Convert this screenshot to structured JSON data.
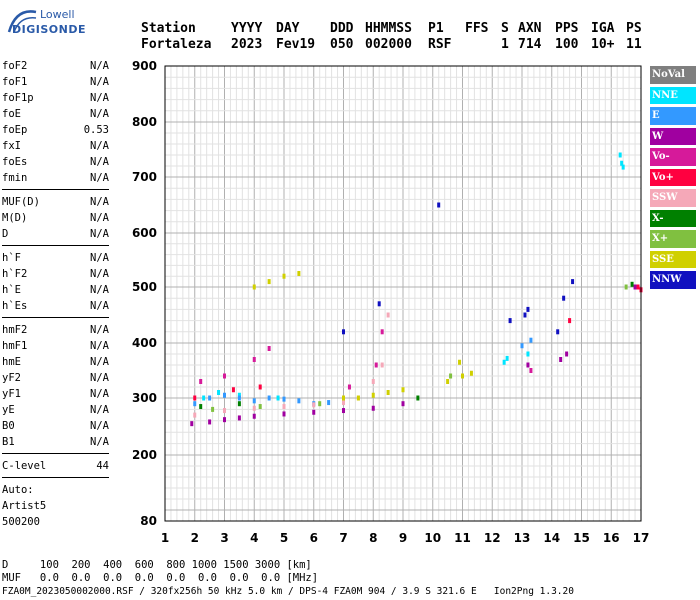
{
  "logo": {
    "top": "Lowell",
    "bottom": "DIGISONDE"
  },
  "header": {
    "labels": [
      "Station",
      "YYYY",
      "DAY",
      "DDD",
      "HHMMSS",
      "P1",
      "FFS",
      "S",
      "AXN",
      "PPS",
      "IGA",
      "PS"
    ],
    "values": [
      "Fortaleza",
      "2023",
      "Fev19",
      "050",
      "002000",
      "RSF",
      "1",
      "714",
      "100",
      "10+",
      "11"
    ]
  },
  "params": {
    "group1": [
      [
        "foF2",
        "N/A"
      ],
      [
        "foF1",
        "N/A"
      ],
      [
        "foF1p",
        "N/A"
      ],
      [
        "foE",
        "N/A"
      ],
      [
        "foEp",
        "0.53"
      ],
      [
        "fxI",
        "N/A"
      ],
      [
        "foEs",
        "N/A"
      ],
      [
        "fmin",
        "N/A"
      ]
    ],
    "group2": [
      [
        "MUF(D)",
        "N/A"
      ],
      [
        "M(D)",
        "N/A"
      ],
      [
        "D",
        "N/A"
      ]
    ],
    "group3": [
      [
        "h`F",
        "N/A"
      ],
      [
        "h`F2",
        "N/A"
      ],
      [
        "h`E",
        "N/A"
      ],
      [
        "h`Es",
        "N/A"
      ]
    ],
    "group4": [
      [
        "hmF2",
        "N/A"
      ],
      [
        "hmF1",
        "N/A"
      ],
      [
        "hmE",
        "N/A"
      ],
      [
        "yF2",
        "N/A"
      ],
      [
        "yF1",
        "N/A"
      ],
      [
        "yE",
        "N/A"
      ],
      [
        "B0",
        "N/A"
      ],
      [
        "B1",
        "N/A"
      ]
    ],
    "group5": [
      [
        "C-level",
        "44"
      ]
    ]
  },
  "auto": [
    "Auto:",
    "Artist5",
    "500200"
  ],
  "legend": [
    {
      "label": "NoVal",
      "color": "#7f7f7f"
    },
    {
      "label": "NNE",
      "color": "#00e5ff"
    },
    {
      "label": "E",
      "color": "#3399ff"
    },
    {
      "label": "W",
      "color": "#a000a0"
    },
    {
      "label": "Vo-",
      "color": "#d61a9a"
    },
    {
      "label": "Vo+",
      "color": "#ff0040"
    },
    {
      "label": "SSW",
      "color": "#f5a8b8"
    },
    {
      "label": "X-",
      "color": "#008000"
    },
    {
      "label": "X+",
      "color": "#80c040"
    },
    {
      "label": "SSE",
      "color": "#d0d000"
    },
    {
      "label": "NNW",
      "color": "#1010c0"
    }
  ],
  "bottom": {
    "d_row": "D     100  200  400  600  800 1000 1500 3000 [km]",
    "muf_row": "MUF   0.0  0.0  0.0  0.0  0.0  0.0  0.0  0.0 [MHz]",
    "file_row": "FZA0M_2023050002000.RSF / 320fx256h 50 kHz 5.0 km / DPS-4 FZA0M 904 / 3.9 S 321.6 E   Ion2Png 1.3.20"
  },
  "chart_data": {
    "type": "scatter",
    "xlabel": "",
    "ylabel": "",
    "xlim": [
      1,
      17
    ],
    "ylim": [
      80,
      900
    ],
    "x_ticks": [
      "1",
      "2",
      "3",
      "4",
      "5",
      "6",
      "7",
      "8",
      "9",
      "10",
      "11",
      "12",
      "13",
      "14",
      "15",
      "16",
      "17"
    ],
    "y_ticks": [
      "80",
      "200",
      "300",
      "400",
      "500",
      "600",
      "700",
      "800",
      "900"
    ],
    "grid": true,
    "legend_position": "right",
    "series": [
      {
        "name": "NNE",
        "color": "#00e5ff",
        "points": [
          [
            16.3,
            740
          ],
          [
            16.35,
            725
          ],
          [
            16.4,
            718
          ],
          [
            12.4,
            365
          ],
          [
            12.5,
            372
          ],
          [
            13.2,
            380
          ],
          [
            2.3,
            300
          ],
          [
            2.8,
            310
          ],
          [
            3.5,
            305
          ],
          [
            4.8,
            300
          ]
        ]
      },
      {
        "name": "E",
        "color": "#3399ff",
        "points": [
          [
            2.0,
            290
          ],
          [
            2.5,
            300
          ],
          [
            3.0,
            305
          ],
          [
            3.5,
            300
          ],
          [
            4.0,
            295
          ],
          [
            4.5,
            300
          ],
          [
            5.0,
            298
          ],
          [
            5.5,
            295
          ],
          [
            6.0,
            290
          ],
          [
            6.5,
            292
          ],
          [
            13.0,
            395
          ],
          [
            13.3,
            405
          ]
        ]
      },
      {
        "name": "W",
        "color": "#a000a0",
        "points": [
          [
            1.9,
            255
          ],
          [
            2.5,
            258
          ],
          [
            3.0,
            262
          ],
          [
            3.5,
            265
          ],
          [
            4.0,
            268
          ],
          [
            5.0,
            272
          ],
          [
            6.0,
            275
          ],
          [
            7.0,
            278
          ],
          [
            8.0,
            282
          ],
          [
            9.0,
            290
          ],
          [
            13.2,
            360
          ],
          [
            14.3,
            370
          ],
          [
            14.5,
            380
          ],
          [
            16.8,
            500
          ]
        ]
      },
      {
        "name": "Vo-",
        "color": "#d61a9a",
        "points": [
          [
            2.2,
            330
          ],
          [
            3.0,
            340
          ],
          [
            4.0,
            370
          ],
          [
            4.5,
            390
          ],
          [
            7.2,
            320
          ],
          [
            8.1,
            360
          ],
          [
            8.3,
            420
          ],
          [
            13.3,
            350
          ]
        ]
      },
      {
        "name": "Vo+",
        "color": "#ff0040",
        "points": [
          [
            2.0,
            300
          ],
          [
            3.3,
            315
          ],
          [
            4.2,
            320
          ],
          [
            16.9,
            500
          ],
          [
            17.0,
            495
          ],
          [
            14.6,
            440
          ]
        ]
      },
      {
        "name": "SSW",
        "color": "#f5a8b8",
        "points": [
          [
            2.0,
            270
          ],
          [
            3.0,
            278
          ],
          [
            4.0,
            282
          ],
          [
            5.0,
            285
          ],
          [
            6.0,
            288
          ],
          [
            7.0,
            292
          ],
          [
            7.5,
            300
          ],
          [
            8.0,
            330
          ],
          [
            8.3,
            360
          ],
          [
            8.5,
            450
          ]
        ]
      },
      {
        "name": "X-",
        "color": "#008000",
        "points": [
          [
            2.2,
            285
          ],
          [
            3.5,
            290
          ],
          [
            9.5,
            300
          ],
          [
            16.7,
            505
          ]
        ]
      },
      {
        "name": "X+",
        "color": "#80c040",
        "points": [
          [
            2.6,
            280
          ],
          [
            4.2,
            285
          ],
          [
            6.2,
            290
          ],
          [
            10.6,
            340
          ],
          [
            16.5,
            500
          ]
        ]
      },
      {
        "name": "SSE",
        "color": "#d0d000",
        "points": [
          [
            4.0,
            500
          ],
          [
            4.5,
            510
          ],
          [
            5.0,
            520
          ],
          [
            5.5,
            525
          ],
          [
            7.0,
            300
          ],
          [
            7.5,
            300
          ],
          [
            8.0,
            305
          ],
          [
            8.5,
            310
          ],
          [
            9.0,
            315
          ],
          [
            10.5,
            330
          ],
          [
            11.0,
            340
          ],
          [
            11.3,
            345
          ],
          [
            10.9,
            365
          ]
        ]
      },
      {
        "name": "NNW",
        "color": "#1010c0",
        "points": [
          [
            12.6,
            440
          ],
          [
            13.1,
            450
          ],
          [
            13.2,
            460
          ],
          [
            14.2,
            420
          ],
          [
            14.4,
            480
          ],
          [
            14.7,
            510
          ],
          [
            10.2,
            650
          ],
          [
            7.0,
            420
          ],
          [
            8.2,
            470
          ]
        ]
      }
    ]
  }
}
